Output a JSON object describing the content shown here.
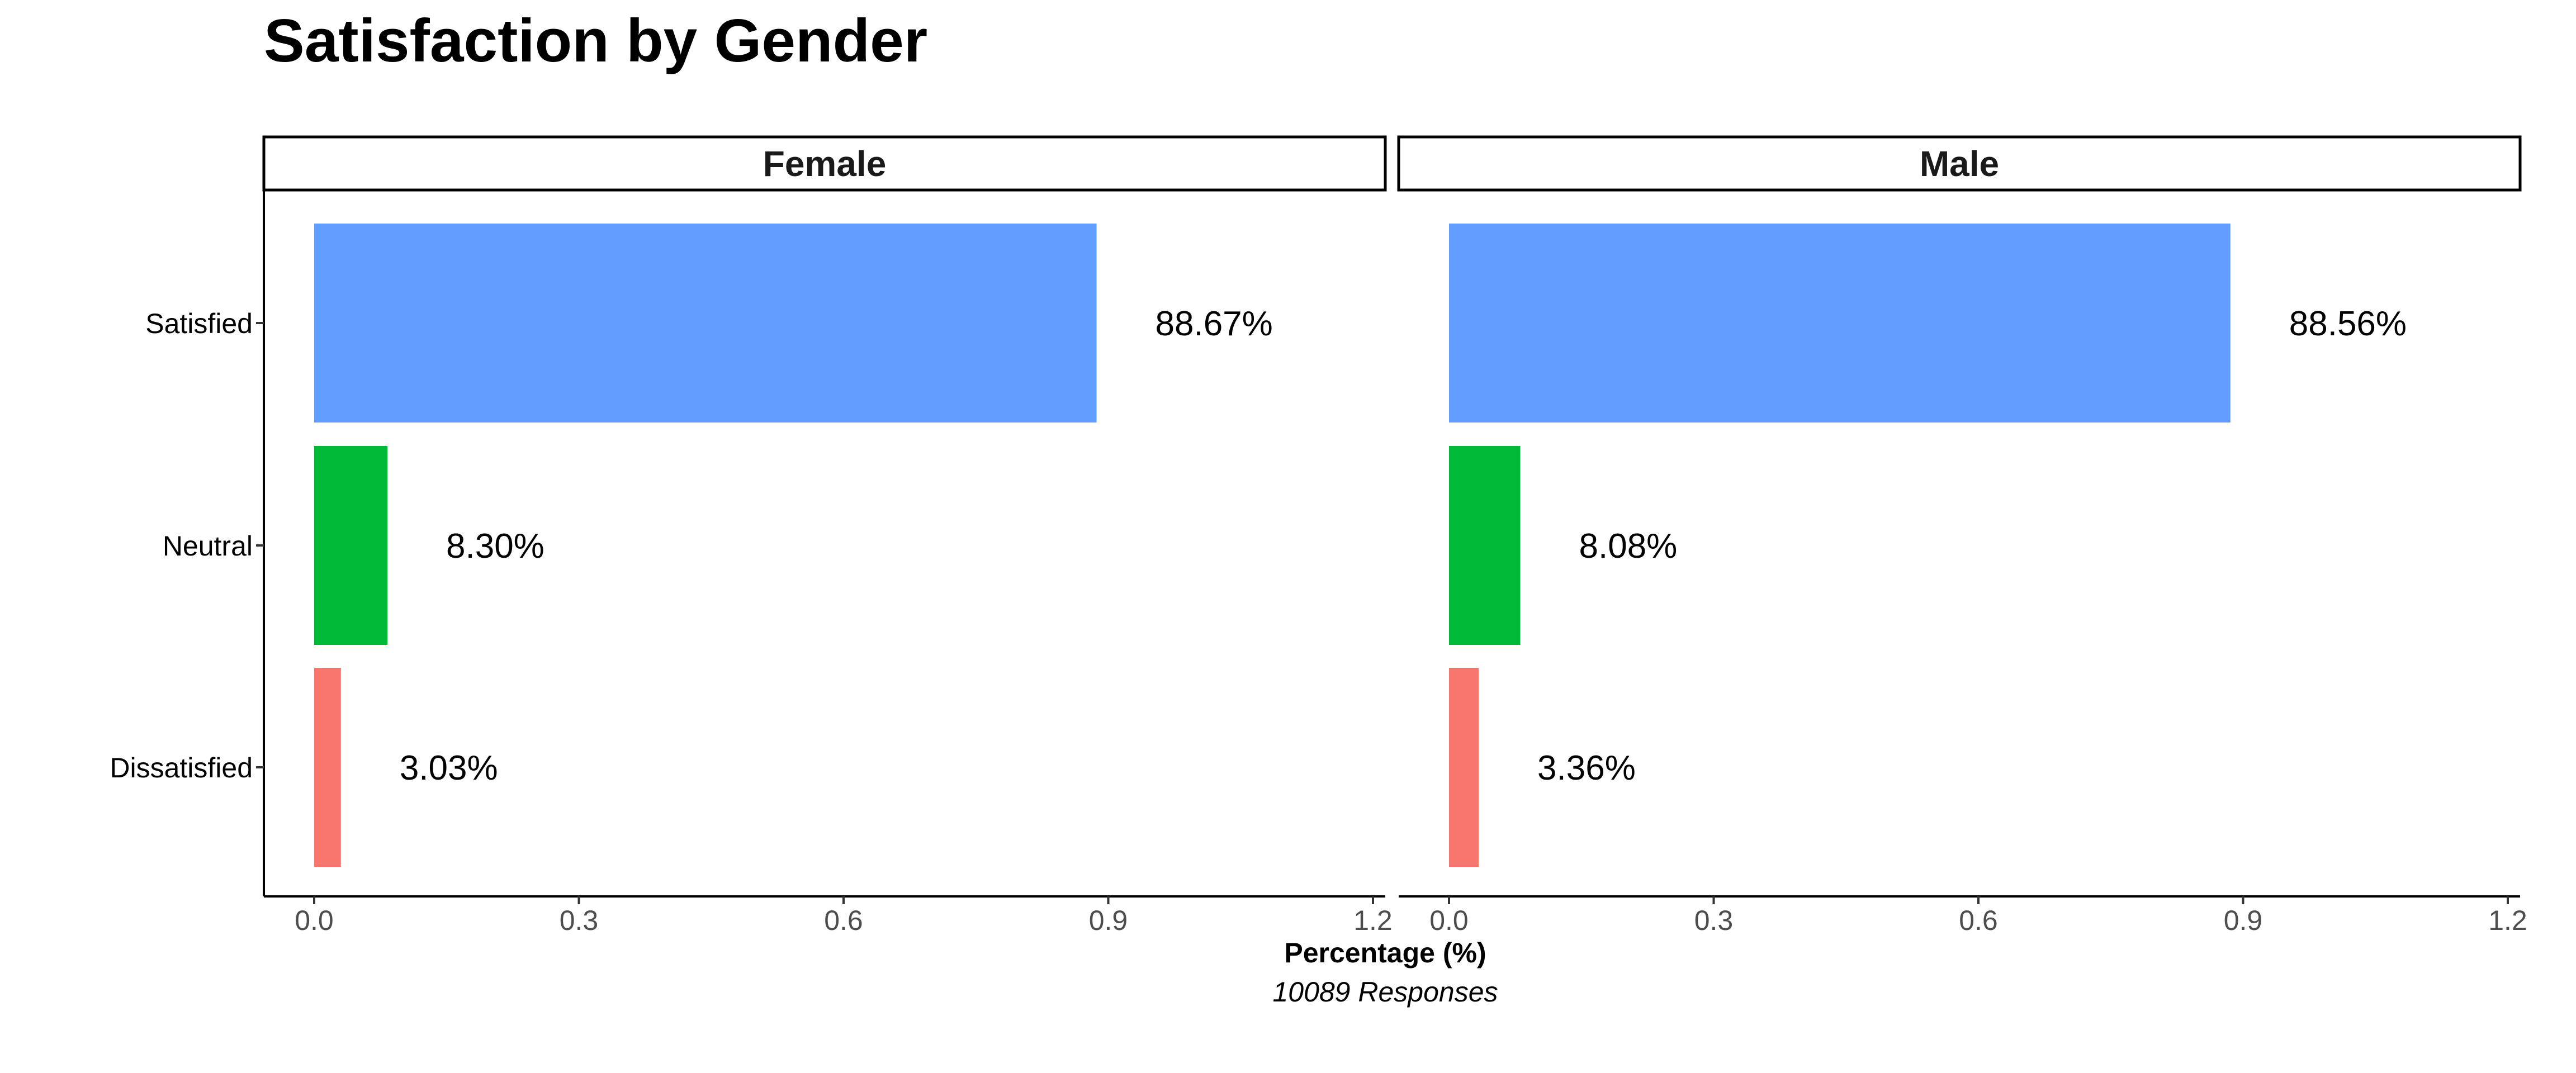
{
  "chart_data": {
    "type": "bar",
    "orientation": "horizontal",
    "title": "Satisfaction by Gender",
    "xlabel": "Percentage (%)",
    "caption": "10089 Responses",
    "categories": [
      "Satisfied",
      "Neutral",
      "Dissatisfied"
    ],
    "xlim": [
      0,
      1.2
    ],
    "xticks": [
      0.0,
      0.3,
      0.6,
      0.9,
      1.2
    ],
    "xtick_labels": [
      "0.0",
      "0.3",
      "0.6",
      "0.9",
      "1.2"
    ],
    "grid": false,
    "colors": {
      "Satisfied": "#619CFF",
      "Neutral": "#00BA38",
      "Dissatisfied": "#F8766D"
    },
    "panels": [
      {
        "name": "Female",
        "values": [
          0.8867,
          0.083,
          0.0303
        ],
        "labels": [
          "88.67%",
          "8.30%",
          "3.03%"
        ]
      },
      {
        "name": "Male",
        "values": [
          0.8856,
          0.0808,
          0.0336
        ],
        "labels": [
          "88.56%",
          "8.08%",
          "3.36%"
        ]
      }
    ]
  }
}
